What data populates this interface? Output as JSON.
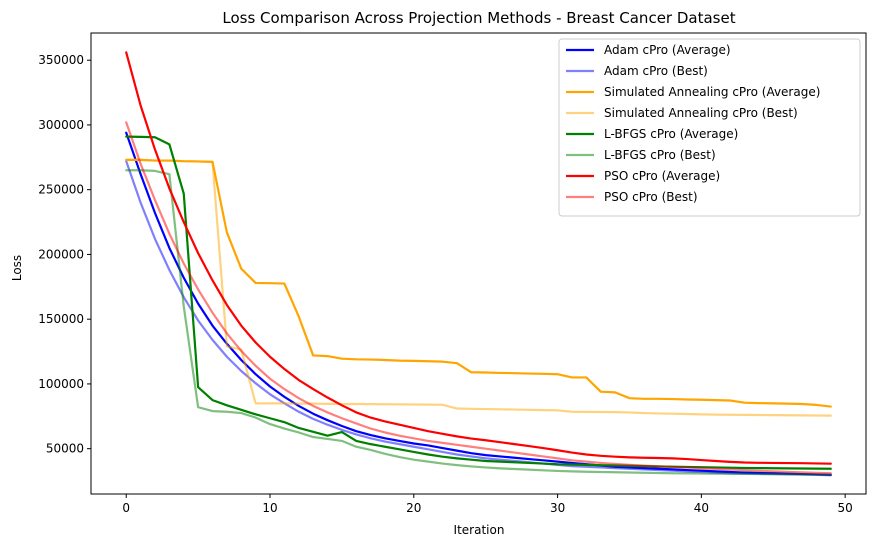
{
  "chart_data": {
    "type": "line",
    "title": "Loss Comparison Across Projection Methods - Breast Cancer Dataset",
    "xlabel": "Iteration",
    "ylabel": "Loss",
    "xlim": [
      -2.45,
      51.45
    ],
    "ylim": [
      15000,
      371000
    ],
    "xticks": [
      0,
      10,
      20,
      30,
      40,
      50
    ],
    "yticks": [
      50000,
      100000,
      150000,
      200000,
      250000,
      300000,
      350000
    ],
    "legend_position": "top-right",
    "grid": false,
    "x": [
      0,
      1,
      2,
      3,
      4,
      5,
      6,
      7,
      8,
      9,
      10,
      11,
      12,
      13,
      14,
      15,
      16,
      17,
      18,
      19,
      20,
      21,
      22,
      23,
      24,
      25,
      26,
      27,
      28,
      29,
      30,
      31,
      32,
      33,
      34,
      35,
      36,
      37,
      38,
      39,
      40,
      41,
      42,
      43,
      44,
      45,
      46,
      47,
      48,
      49
    ],
    "series": [
      {
        "name": "Adam cPro (Average)",
        "color": "#0000ff",
        "alpha": 1.0,
        "values": [
          294000,
          262000,
          232000,
          205000,
          182000,
          162000,
          145000,
          131000,
          118500,
          107500,
          98000,
          90000,
          83000,
          77000,
          72000,
          67500,
          63500,
          60500,
          58000,
          56000,
          54000,
          52500,
          50500,
          48500,
          46500,
          45000,
          44000,
          43000,
          42000,
          41000,
          40000,
          39000,
          38000,
          37000,
          36000,
          35500,
          35000,
          34500,
          34000,
          33500,
          33000,
          32500,
          32000,
          31500,
          31200,
          31000,
          30700,
          30400,
          30100,
          29800
        ]
      },
      {
        "name": "Adam cPro (Best)",
        "color": "#0000ff",
        "alpha": 0.5,
        "values": [
          272000,
          240000,
          212000,
          188000,
          167000,
          149000,
          134000,
          121000,
          110000,
          100500,
          92000,
          85000,
          78500,
          73000,
          68500,
          64500,
          61000,
          58000,
          55500,
          53500,
          51500,
          49500,
          47500,
          45500,
          44000,
          42500,
          41500,
          40500,
          39500,
          38500,
          37500,
          36500,
          36000,
          35500,
          35000,
          34500,
          34000,
          33500,
          33000,
          32500,
          32000,
          31500,
          31000,
          30800,
          30600,
          30400,
          30200,
          30000,
          29800,
          29500
        ]
      },
      {
        "name": "Simulated Annealing cPro (Average)",
        "color": "#ffa500",
        "alpha": 1.0,
        "values": [
          273000,
          273000,
          272500,
          272500,
          272000,
          271800,
          271500,
          217000,
          189000,
          178000,
          177800,
          177500,
          152000,
          122000,
          121500,
          119500,
          119000,
          118800,
          118500,
          118000,
          117800,
          117500,
          117200,
          116000,
          109000,
          108800,
          108500,
          108300,
          108000,
          107800,
          107500,
          105000,
          105000,
          94000,
          93500,
          89000,
          88500,
          88500,
          88300,
          88000,
          87800,
          87500,
          87200,
          85500,
          85200,
          85000,
          84800,
          84500,
          83800,
          82500
        ]
      },
      {
        "name": "Simulated Annealing cPro (Best)",
        "color": "#ffa500",
        "alpha": 0.5,
        "values": [
          273000,
          273000,
          272500,
          272500,
          272000,
          271800,
          271500,
          129000,
          126500,
          85000,
          85000,
          85000,
          84800,
          84800,
          84600,
          84500,
          84500,
          84400,
          84300,
          84200,
          84100,
          84000,
          83900,
          81000,
          80800,
          80600,
          80400,
          80200,
          80000,
          79800,
          79600,
          78500,
          78400,
          78300,
          78200,
          78000,
          77500,
          77200,
          77000,
          76800,
          76500,
          76300,
          76200,
          76100,
          76000,
          75900,
          75800,
          75700,
          75600,
          75500
        ]
      },
      {
        "name": "L-BFGS cPro (Average)",
        "color": "#008000",
        "alpha": 1.0,
        "values": [
          291000,
          290800,
          290500,
          285000,
          247000,
          97500,
          87500,
          83500,
          80000,
          76500,
          73500,
          70500,
          66000,
          63000,
          60000,
          62800,
          56000,
          53500,
          51500,
          49500,
          47500,
          45500,
          43800,
          42500,
          41500,
          40500,
          40000,
          39500,
          39000,
          38500,
          38000,
          37800,
          37500,
          37200,
          37000,
          36800,
          36500,
          36300,
          36100,
          35900,
          35700,
          35500,
          35300,
          35100,
          35000,
          34900,
          34800,
          34700,
          34600,
          34500
        ]
      },
      {
        "name": "L-BFGS cPro (Best)",
        "color": "#008000",
        "alpha": 0.5,
        "values": [
          265000,
          265000,
          264500,
          262000,
          160000,
          82000,
          79000,
          78500,
          77500,
          74000,
          69000,
          65500,
          62500,
          59000,
          57500,
          56000,
          51500,
          49000,
          46000,
          43500,
          41500,
          40000,
          38500,
          37300,
          36300,
          35500,
          34800,
          34300,
          33800,
          33300,
          32800,
          32500,
          32200,
          32000,
          31800,
          31600,
          31400,
          31200,
          31000,
          30900,
          30800,
          30700,
          30600,
          30500,
          30400,
          30300,
          30200,
          30100,
          30000,
          29900
        ]
      },
      {
        "name": "PSO cPro (Average)",
        "color": "#ff0000",
        "alpha": 1.0,
        "values": [
          356000,
          315000,
          281000,
          251000,
          225000,
          201000,
          180000,
          161000,
          145000,
          132000,
          121000,
          111500,
          103000,
          96000,
          89500,
          83500,
          78000,
          74000,
          71000,
          68500,
          66000,
          63500,
          61500,
          59500,
          57800,
          56500,
          55000,
          53500,
          52000,
          50500,
          48800,
          47000,
          45500,
          44500,
          43800,
          43300,
          43000,
          42800,
          42500,
          42000,
          41200,
          40500,
          39800,
          39300,
          39100,
          39000,
          38900,
          38800,
          38600,
          38400
        ]
      },
      {
        "name": "PSO cPro (Best)",
        "color": "#ff0000",
        "alpha": 0.5,
        "values": [
          302000,
          270000,
          242000,
          216000,
          193000,
          173000,
          155000,
          139000,
          125500,
          114000,
          104000,
          96000,
          89000,
          83000,
          78000,
          73500,
          69500,
          65500,
          62500,
          60000,
          58000,
          56000,
          54500,
          53000,
          51500,
          50000,
          48500,
          47000,
          45500,
          44000,
          42500,
          41000,
          40000,
          39000,
          38200,
          37500,
          36900,
          36400,
          35900,
          35400,
          34900,
          34400,
          33900,
          33400,
          32900,
          32500,
          32100,
          31700,
          31300,
          31000
        ]
      }
    ]
  }
}
